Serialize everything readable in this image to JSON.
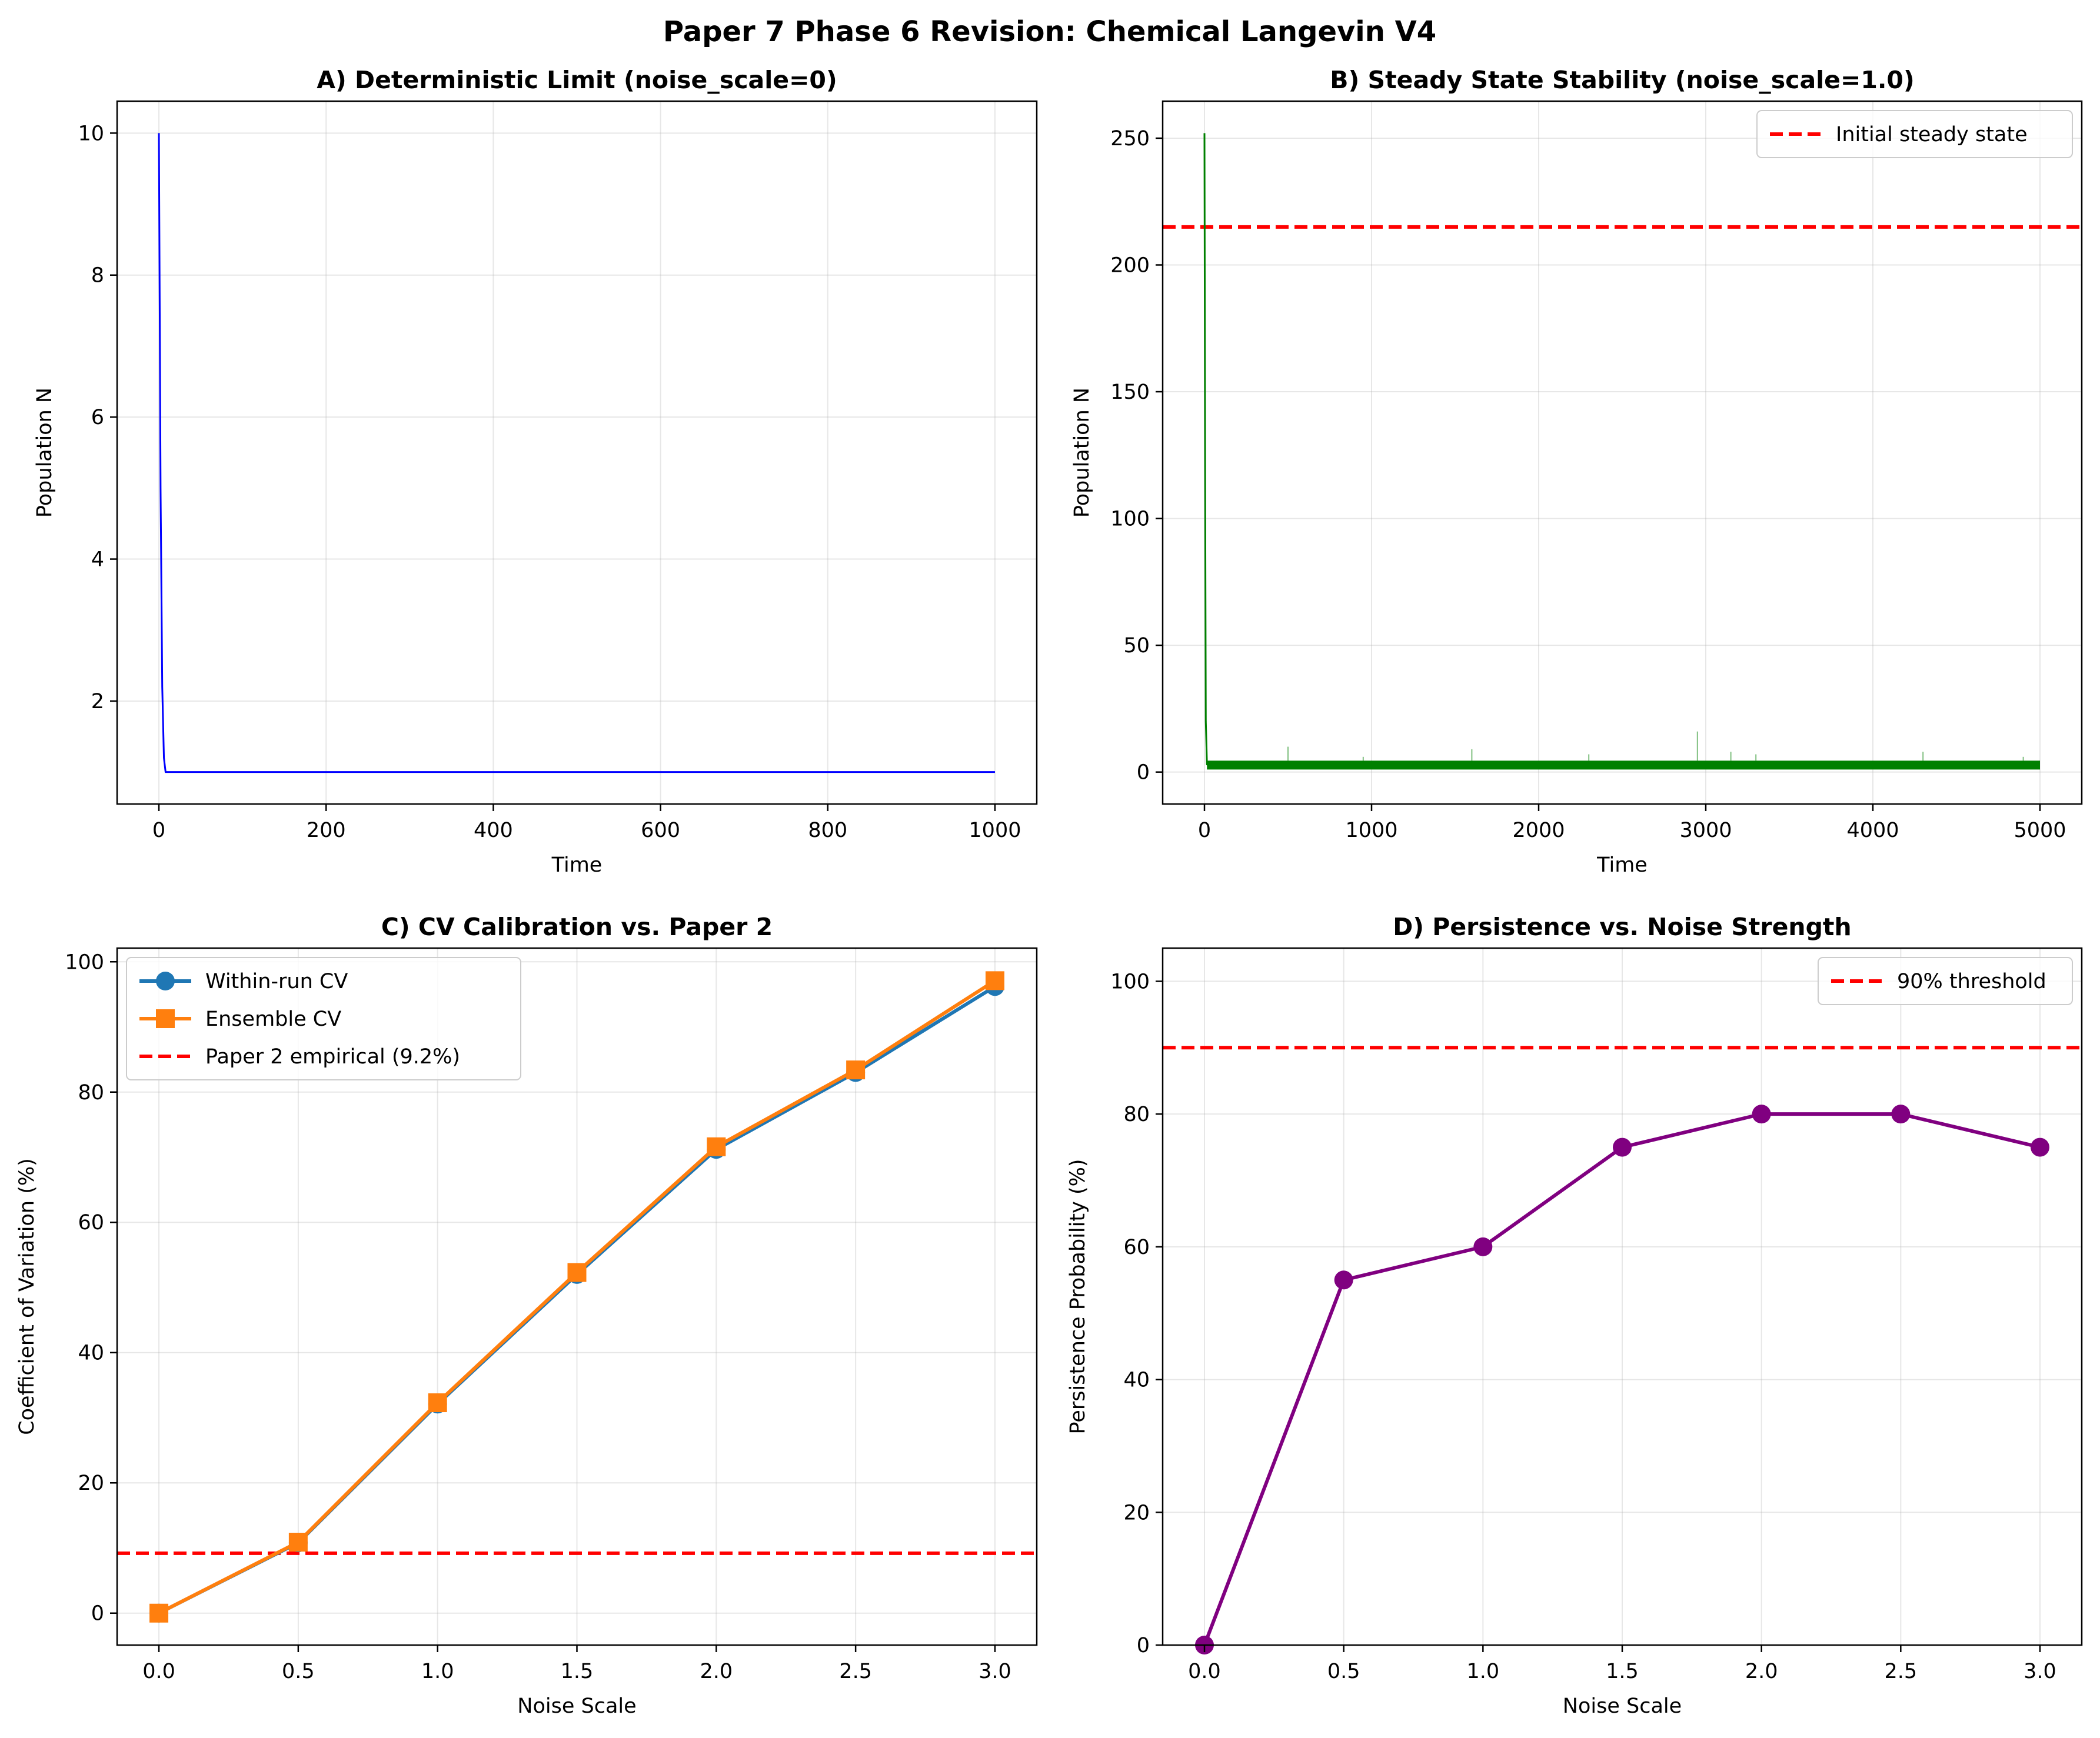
{
  "figure": {
    "suptitle": "Paper 7 Phase 6 Revision: Chemical Langevin V4"
  },
  "colors": {
    "blue": "#0000ff",
    "green": "#008000",
    "red": "#ff0000",
    "tab_blue": "#1f77b4",
    "tab_orange": "#ff7f0e",
    "purple": "#800080",
    "grid": "#b0b0b0",
    "text": "#000000"
  },
  "chart_data": [
    {
      "id": "A",
      "type": "line",
      "title": "A) Deterministic Limit (noise_scale=0)",
      "xlabel": "Time",
      "ylabel": "Population N",
      "xlim": [
        -50,
        1050
      ],
      "ylim": [
        0.55,
        10.45
      ],
      "xticks": [
        0,
        200,
        400,
        600,
        800,
        1000
      ],
      "yticks": [
        2,
        4,
        6,
        8,
        10
      ],
      "grid": true,
      "legend": null,
      "series": [
        {
          "color": "#0000ff",
          "width": 1.0,
          "x": [
            0,
            2,
            4,
            6,
            8,
            1000
          ],
          "y": [
            10,
            5.0,
            2.2,
            1.2,
            1.0,
            1.0
          ]
        }
      ],
      "hlines": []
    },
    {
      "id": "B",
      "type": "line",
      "title": "B) Steady State Stability (noise_scale=1.0)",
      "xlabel": "Time",
      "ylabel": "Population N",
      "xlim": [
        -250,
        5250
      ],
      "ylim": [
        -12.6,
        264.6
      ],
      "xticks": [
        0,
        1000,
        2000,
        3000,
        4000,
        5000
      ],
      "yticks": [
        0,
        50,
        100,
        150,
        200,
        250
      ],
      "grid": true,
      "legend": "top-right",
      "series": [
        {
          "color": "#008000",
          "width": 1.0,
          "x": [
            0,
            4,
            8,
            15,
            5000
          ],
          "y": [
            252,
            120,
            20,
            3,
            2.5
          ]
        }
      ],
      "noise_band": {
        "color": "#008000",
        "x_from": 15,
        "x_to": 5000,
        "y_low": 1.0,
        "y_high": 4.5,
        "spikes": [
          [
            500,
            10
          ],
          [
            950,
            6
          ],
          [
            1600,
            9
          ],
          [
            2300,
            7
          ],
          [
            2950,
            16
          ],
          [
            3150,
            8
          ],
          [
            3300,
            7
          ],
          [
            4300,
            8
          ],
          [
            4900,
            6
          ]
        ]
      },
      "hlines": [
        {
          "y": 215,
          "color": "#ff0000",
          "label": "Initial steady state"
        }
      ]
    },
    {
      "id": "C",
      "type": "line",
      "title": "C) CV Calibration vs. Paper 2",
      "xlabel": "Noise Scale",
      "ylabel": "Coefficient of Variation (%)",
      "xlim": [
        -0.15,
        3.15
      ],
      "ylim": [
        -4.9,
        102.1
      ],
      "xticks": [
        0.0,
        0.5,
        1.0,
        1.5,
        2.0,
        2.5,
        3.0
      ],
      "yticks": [
        0,
        20,
        40,
        60,
        80,
        100
      ],
      "grid": true,
      "legend": "top-left",
      "series": [
        {
          "name": "Within-run CV",
          "color": "#1f77b4",
          "marker": "circle",
          "x": [
            0.0,
            0.5,
            1.0,
            1.5,
            2.0,
            2.5,
            3.0
          ],
          "y": [
            0.0,
            10.8,
            32.1,
            52.0,
            71.2,
            83.0,
            96.2
          ]
        },
        {
          "name": "Ensemble CV",
          "color": "#ff7f0e",
          "marker": "square",
          "x": [
            0.0,
            0.5,
            1.0,
            1.5,
            2.0,
            2.5,
            3.0
          ],
          "y": [
            0.0,
            10.9,
            32.3,
            52.3,
            71.6,
            83.4,
            97.1
          ]
        }
      ],
      "hlines": [
        {
          "y": 9.2,
          "color": "#ff0000",
          "label": "Paper 2 empirical (9.2%)"
        }
      ]
    },
    {
      "id": "D",
      "type": "line",
      "title": "D) Persistence vs. Noise Strength",
      "xlabel": "Noise Scale",
      "ylabel": "Persistence Probability (%)",
      "xlim": [
        -0.15,
        3.15
      ],
      "ylim": [
        0,
        105
      ],
      "xticks": [
        0.0,
        0.5,
        1.0,
        1.5,
        2.0,
        2.5,
        3.0
      ],
      "yticks": [
        0,
        20,
        40,
        60,
        80,
        100
      ],
      "grid": true,
      "legend": "top-right",
      "series": [
        {
          "color": "#800080",
          "marker": "circle",
          "x": [
            0.0,
            0.5,
            1.0,
            1.5,
            2.0,
            2.5,
            3.0
          ],
          "y": [
            0,
            55,
            60,
            75,
            80,
            80,
            75
          ]
        }
      ],
      "hlines": [
        {
          "y": 90,
          "color": "#ff0000",
          "label": "90% threshold"
        }
      ]
    }
  ]
}
